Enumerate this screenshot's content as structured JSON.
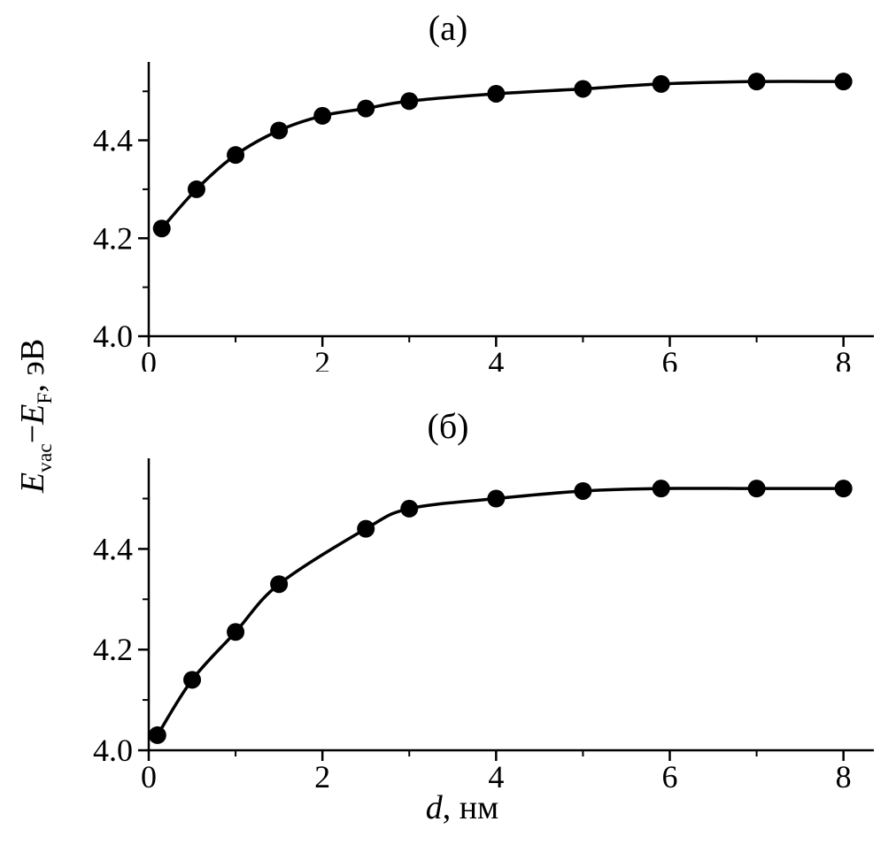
{
  "figure": {
    "background": "#ffffff",
    "ink": "#000000"
  },
  "labels": {
    "ylabel_plain": "Evac−EF, эВ",
    "xlabel_plain": "d, нм",
    "ylabel": {
      "e1": "E",
      "sub1": "vac",
      "minus": "−",
      "e2": "E",
      "sub2": "F",
      "rest": ", эВ"
    },
    "xlabel": {
      "var": "d",
      "rest": ", нм"
    }
  },
  "chart_data": [
    {
      "type": "line",
      "title": "(а)",
      "x": [
        0.15,
        0.55,
        1.0,
        1.5,
        2.0,
        2.5,
        3.0,
        4.0,
        5.0,
        5.9,
        7.0,
        8.0
      ],
      "y": [
        4.22,
        4.3,
        4.37,
        4.42,
        4.45,
        4.465,
        4.48,
        4.495,
        4.505,
        4.515,
        4.52,
        4.52
      ],
      "xlim": [
        0,
        8.35
      ],
      "ylim": [
        4.0,
        4.56
      ],
      "xtick_values": [
        0,
        2,
        4,
        6,
        8
      ],
      "xtick_labels": [
        "0",
        "2",
        "4",
        "6",
        "8"
      ],
      "xtick_minor": [
        1,
        3,
        5,
        7
      ],
      "ytick_values": [
        4.0,
        4.2,
        4.4
      ],
      "ytick_labels": [
        "4.0",
        "4.2",
        "4.4"
      ],
      "ytick_minor": [
        4.1,
        4.3,
        4.5
      ],
      "marker": "circle",
      "color": "#000000",
      "grid": false,
      "legend": false
    },
    {
      "type": "line",
      "title": "(б)",
      "x": [
        0.1,
        0.5,
        1.0,
        1.5,
        2.5,
        3.0,
        4.0,
        5.0,
        5.9,
        7.0,
        8.0
      ],
      "y": [
        4.03,
        4.14,
        4.235,
        4.33,
        4.44,
        4.48,
        4.5,
        4.515,
        4.52,
        4.52,
        4.52
      ],
      "xlim": [
        0,
        8.35
      ],
      "ylim": [
        4.0,
        4.58
      ],
      "xtick_values": [
        0,
        2,
        4,
        6,
        8
      ],
      "xtick_labels": [
        "0",
        "2",
        "4",
        "6",
        "8"
      ],
      "xtick_minor": [
        1,
        3,
        5,
        7
      ],
      "ytick_values": [
        4.0,
        4.2,
        4.4
      ],
      "ytick_labels": [
        "4.0",
        "4.2",
        "4.4"
      ],
      "ytick_minor": [
        4.1,
        4.3,
        4.5
      ],
      "marker": "circle",
      "color": "#000000",
      "grid": false,
      "legend": false
    }
  ]
}
